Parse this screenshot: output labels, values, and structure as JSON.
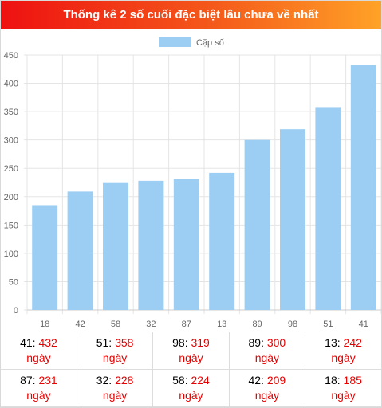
{
  "header": {
    "title": "Thống kê 2 số cuối đặc biệt lâu chưa về nhất"
  },
  "colors": {
    "bar": "#9ccef4",
    "accent": "#e60000"
  },
  "chart_data": {
    "type": "bar",
    "categories": [
      "18",
      "42",
      "58",
      "32",
      "87",
      "13",
      "89",
      "98",
      "51",
      "41"
    ],
    "series": [
      {
        "name": "Cặp số",
        "values": [
          185,
          209,
          224,
          228,
          231,
          242,
          300,
          319,
          358,
          432
        ]
      }
    ],
    "title": "",
    "xlabel": "",
    "ylabel": "",
    "ylim": [
      0,
      450
    ],
    "yticks": [
      0,
      50,
      100,
      150,
      200,
      250,
      300,
      350,
      400,
      450
    ],
    "grid": true,
    "legend": "top-center"
  },
  "stats": {
    "unit_label": "ngày",
    "rows": [
      [
        {
          "num": "41",
          "days": "432"
        },
        {
          "num": "51",
          "days": "358"
        },
        {
          "num": "98",
          "days": "319"
        },
        {
          "num": "89",
          "days": "300"
        },
        {
          "num": "13",
          "days": "242"
        }
      ],
      [
        {
          "num": "87",
          "days": "231"
        },
        {
          "num": "32",
          "days": "228"
        },
        {
          "num": "58",
          "days": "224"
        },
        {
          "num": "42",
          "days": "209"
        },
        {
          "num": "18",
          "days": "185"
        }
      ]
    ]
  }
}
